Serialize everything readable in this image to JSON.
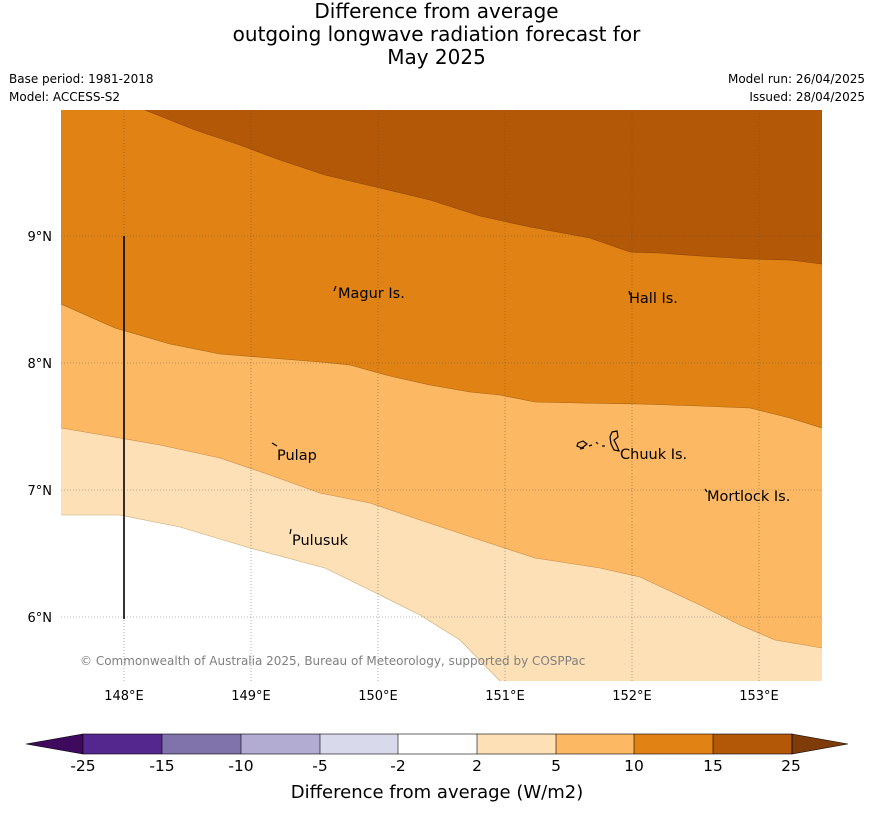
{
  "title": {
    "line1": "Difference from average",
    "line2": "outgoing longwave radiation forecast for",
    "line3": "May 2025"
  },
  "meta": {
    "base_period": "Base period: 1981-2018",
    "model": "Model: ACCESS-S2",
    "model_run": "Model run: 26/04/2025",
    "issued": "Issued: 28/04/2025"
  },
  "axes": {
    "x_ticks": [
      "148°E",
      "149°E",
      "150°E",
      "151°E",
      "152°E",
      "153°E"
    ],
    "y_ticks": [
      "9°N",
      "8°N",
      "7°N",
      "6°N"
    ]
  },
  "places": {
    "magur": "Magur Is.",
    "hall": "Hall Is.",
    "pulap": "Pulap",
    "chuuk": "Chuuk Is.",
    "mortlock": "Mortlock Is.",
    "pulusuk": "Pulusuk"
  },
  "copyright": "© Commonwealth of Australia 2025, Bureau of Meteorology, supported by COSPPac",
  "colorbar": {
    "title": "Difference from average (W/m2)",
    "labels": [
      "-25",
      "-15",
      "-10",
      "-5",
      "-2",
      "2",
      "5",
      "10",
      "15",
      "25"
    ],
    "colors": {
      "lt_minus25": "#3f0a5e",
      "minus25_minus15": "#54278f",
      "minus15_minus10": "#8073ac",
      "minus10_minus5": "#b2abd2",
      "minus5_minus2": "#d8daeb",
      "minus2_2": "#ffffff",
      "2_5": "#fee0b6",
      "5_10": "#fdb863",
      "10_15": "#e08214",
      "15_25": "#b35806",
      "gt_25": "#7f3b08"
    }
  }
}
